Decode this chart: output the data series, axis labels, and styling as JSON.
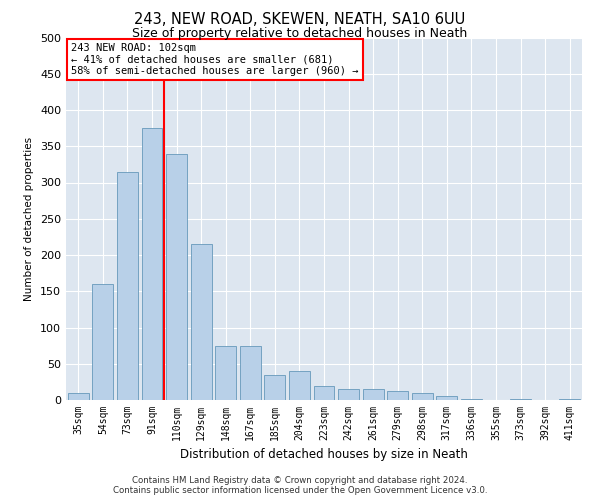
{
  "title1": "243, NEW ROAD, SKEWEN, NEATH, SA10 6UU",
  "title2": "Size of property relative to detached houses in Neath",
  "xlabel": "Distribution of detached houses by size in Neath",
  "ylabel": "Number of detached properties",
  "categories": [
    "35sqm",
    "54sqm",
    "73sqm",
    "91sqm",
    "110sqm",
    "129sqm",
    "148sqm",
    "167sqm",
    "185sqm",
    "204sqm",
    "223sqm",
    "242sqm",
    "261sqm",
    "279sqm",
    "298sqm",
    "317sqm",
    "336sqm",
    "355sqm",
    "373sqm",
    "392sqm",
    "411sqm"
  ],
  "values": [
    10,
    160,
    315,
    375,
    340,
    215,
    75,
    75,
    35,
    40,
    20,
    15,
    15,
    12,
    10,
    5,
    2,
    0,
    2,
    0,
    2
  ],
  "bar_color": "#b8d0e8",
  "bar_edge_color": "#6699bb",
  "vline_x_index": 3,
  "vline_color": "red",
  "annotation_text": "243 NEW ROAD: 102sqm\n← 41% of detached houses are smaller (681)\n58% of semi-detached houses are larger (960) →",
  "annotation_box_color": "white",
  "annotation_box_edge": "red",
  "ylim": [
    0,
    500
  ],
  "yticks": [
    0,
    50,
    100,
    150,
    200,
    250,
    300,
    350,
    400,
    450,
    500
  ],
  "background_color": "#dde6f0",
  "footer1": "Contains HM Land Registry data © Crown copyright and database right 2024.",
  "footer2": "Contains public sector information licensed under the Open Government Licence v3.0."
}
